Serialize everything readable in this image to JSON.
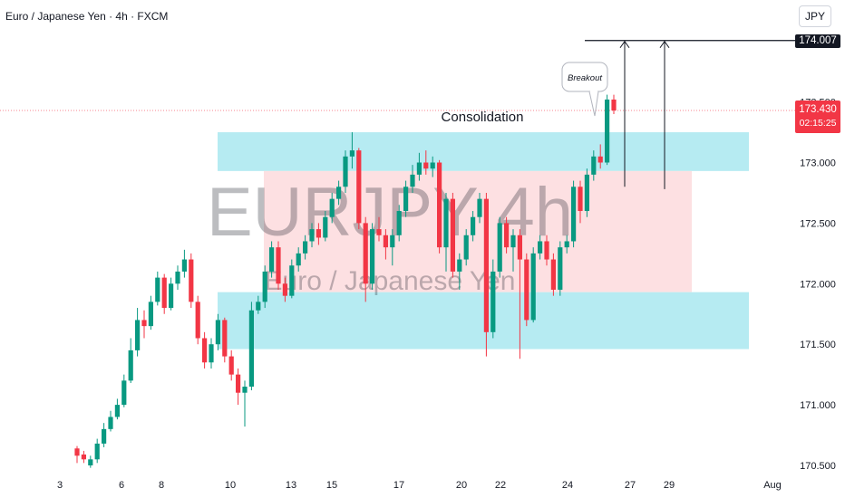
{
  "header": {
    "title": "Euro / Japanese Yen · 4h · FXCM",
    "currency_button": "JPY"
  },
  "watermark": {
    "symbol": "EURJPY 4h",
    "name": "Euro / Japanese Yen"
  },
  "annotations": {
    "consolidation": "Consolidation",
    "breakout": "Breakout",
    "target_price": "174.007",
    "last_price": "173.430",
    "countdown": "02:15:25"
  },
  "colors": {
    "up": "#089981",
    "down": "#f23645",
    "zone_blue": "#b6ebf2",
    "zone_red": "#fde0e2"
  },
  "chart_data": {
    "type": "candlestick",
    "ylim": [
      170.5,
      174.3
    ],
    "y_ticks": [
      "173.500",
      "173.000",
      "172.500",
      "172.000",
      "171.500",
      "171.000",
      "170.500"
    ],
    "x_ticks": [
      "3",
      "6",
      "8",
      "10",
      "13",
      "15",
      "17",
      "20",
      "22",
      "24",
      "27",
      "29",
      "Aug"
    ],
    "zones": [
      {
        "kind": "supply",
        "low": 172.93,
        "high": 173.25
      },
      {
        "kind": "range",
        "low": 171.93,
        "high": 172.93
      },
      {
        "kind": "demand",
        "low": 171.46,
        "high": 171.93
      }
    ],
    "target_level": 174.007,
    "last_price": 173.43,
    "candles": [
      [
        170.64,
        170.58,
        170.66,
        170.52
      ],
      [
        170.59,
        170.55,
        170.62,
        170.52
      ],
      [
        170.5,
        170.55,
        170.58,
        170.48
      ],
      [
        170.55,
        170.68,
        170.72,
        170.52
      ],
      [
        170.68,
        170.8,
        170.85,
        170.65
      ],
      [
        170.8,
        170.9,
        170.95,
        170.78
      ],
      [
        170.9,
        171.0,
        171.05,
        170.88
      ],
      [
        171.0,
        171.2,
        171.25,
        170.98
      ],
      [
        171.2,
        171.45,
        171.55,
        171.18
      ],
      [
        171.45,
        171.7,
        171.8,
        171.4
      ],
      [
        171.7,
        171.65,
        171.78,
        171.55
      ],
      [
        171.65,
        171.85,
        171.9,
        171.62
      ],
      [
        171.85,
        172.05,
        172.1,
        171.82
      ],
      [
        172.05,
        171.8,
        172.08,
        171.75
      ],
      [
        171.8,
        172.0,
        172.05,
        171.78
      ],
      [
        172.0,
        172.1,
        172.15,
        171.95
      ],
      [
        172.1,
        172.2,
        172.28,
        172.05
      ],
      [
        172.2,
        171.85,
        172.25,
        171.8
      ],
      [
        171.85,
        171.55,
        171.9,
        171.5
      ],
      [
        171.55,
        171.35,
        171.6,
        171.3
      ],
      [
        171.35,
        171.5,
        171.55,
        171.3
      ],
      [
        171.5,
        171.7,
        171.75,
        171.45
      ],
      [
        171.7,
        171.4,
        171.72,
        171.35
      ],
      [
        171.4,
        171.25,
        171.45,
        171.2
      ],
      [
        171.25,
        171.1,
        171.3,
        171.0
      ],
      [
        171.1,
        171.15,
        171.2,
        170.82
      ],
      [
        171.15,
        171.78,
        171.85,
        171.12
      ],
      [
        171.78,
        171.85,
        171.9,
        171.75
      ],
      [
        171.85,
        172.1,
        172.15,
        171.8
      ],
      [
        172.1,
        172.3,
        172.35,
        172.05
      ],
      [
        172.3,
        172.0,
        172.35,
        171.95
      ],
      [
        172.0,
        171.9,
        172.05,
        171.85
      ],
      [
        171.9,
        172.15,
        172.2,
        171.88
      ],
      [
        172.15,
        172.25,
        172.3,
        172.1
      ],
      [
        172.25,
        172.35,
        172.4,
        172.2
      ],
      [
        172.35,
        172.45,
        172.5,
        172.3
      ],
      [
        172.45,
        172.38,
        172.5,
        172.32
      ],
      [
        172.38,
        172.55,
        172.6,
        172.35
      ],
      [
        172.55,
        172.7,
        172.75,
        172.5
      ],
      [
        172.7,
        172.8,
        172.85,
        172.65
      ],
      [
        172.8,
        173.05,
        173.1,
        172.75
      ],
      [
        173.05,
        173.1,
        173.25,
        172.95
      ],
      [
        173.1,
        172.5,
        173.12,
        172.45
      ],
      [
        172.5,
        172.0,
        172.55,
        171.85
      ],
      [
        172.0,
        172.45,
        172.5,
        171.95
      ],
      [
        172.45,
        172.4,
        172.55,
        172.35
      ],
      [
        172.4,
        172.3,
        172.45,
        172.2
      ],
      [
        172.3,
        172.4,
        172.45,
        172.15
      ],
      [
        172.4,
        172.6,
        172.65,
        172.35
      ],
      [
        172.6,
        172.8,
        172.85,
        172.55
      ],
      [
        172.8,
        172.9,
        172.98,
        172.75
      ],
      [
        172.9,
        173.0,
        173.08,
        172.85
      ],
      [
        173.0,
        172.95,
        173.1,
        172.9
      ],
      [
        172.95,
        173.0,
        173.05,
        172.88
      ],
      [
        173.0,
        172.3,
        173.02,
        172.25
      ],
      [
        172.3,
        172.7,
        172.75,
        172.1
      ],
      [
        172.7,
        172.1,
        172.75,
        172.05
      ],
      [
        172.1,
        172.2,
        172.25,
        171.95
      ],
      [
        172.2,
        172.4,
        172.45,
        172.15
      ],
      [
        172.4,
        172.55,
        172.6,
        172.35
      ],
      [
        172.55,
        172.7,
        172.75,
        172.5
      ],
      [
        172.7,
        171.6,
        172.75,
        171.4
      ],
      [
        171.6,
        172.1,
        172.2,
        171.55
      ],
      [
        172.1,
        172.5,
        172.55,
        172.05
      ],
      [
        172.5,
        172.3,
        172.55,
        172.25
      ],
      [
        172.3,
        172.4,
        172.45,
        172.1
      ],
      [
        172.4,
        172.2,
        172.45,
        171.38
      ],
      [
        172.2,
        171.7,
        172.25,
        171.65
      ],
      [
        171.7,
        172.25,
        172.3,
        171.68
      ],
      [
        172.25,
        172.35,
        172.4,
        172.2
      ],
      [
        172.35,
        172.2,
        172.4,
        172.15
      ],
      [
        172.2,
        171.95,
        172.25,
        171.9
      ],
      [
        171.95,
        172.3,
        172.35,
        171.9
      ],
      [
        172.3,
        172.35,
        172.4,
        172.25
      ],
      [
        172.35,
        172.8,
        172.85,
        172.3
      ],
      [
        172.8,
        172.6,
        172.85,
        172.5
      ],
      [
        172.6,
        172.9,
        172.95,
        172.55
      ],
      [
        172.9,
        173.05,
        173.1,
        172.85
      ],
      [
        173.05,
        173.0,
        173.15,
        172.95
      ],
      [
        173.0,
        173.52,
        173.56,
        172.98
      ],
      [
        173.52,
        173.43,
        173.56,
        173.4
      ]
    ]
  }
}
